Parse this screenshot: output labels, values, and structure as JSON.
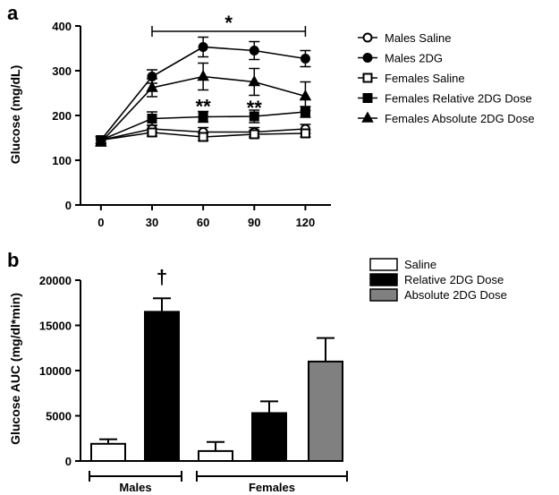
{
  "chart_data": [
    {
      "type": "line",
      "panel_label": "a",
      "xlabel": "",
      "ylabel": "Glucose (mg/dL)",
      "x": [
        0,
        30,
        60,
        90,
        120
      ],
      "xticks": [
        "0",
        "30",
        "60",
        "90",
        "120"
      ],
      "yticks": [
        "0",
        "100",
        "200",
        "300",
        "400"
      ],
      "xlim": [
        -12,
        135
      ],
      "ylim": [
        0,
        400
      ],
      "grid": false,
      "legend_position": "right",
      "series": [
        {
          "name": "Males Saline",
          "marker": "circle-open",
          "values": [
            145,
            170,
            163,
            163,
            170
          ],
          "errors": [
            8,
            8,
            10,
            10,
            10
          ]
        },
        {
          "name": "Males 2DG",
          "marker": "circle-filled",
          "values": [
            145,
            287,
            353,
            345,
            327
          ],
          "errors": [
            8,
            15,
            22,
            20,
            18
          ]
        },
        {
          "name": "Females Saline",
          "marker": "square-open",
          "values": [
            145,
            162,
            152,
            158,
            160
          ],
          "errors": [
            8,
            8,
            8,
            8,
            8
          ]
        },
        {
          "name": "Females Relative 2DG Dose",
          "marker": "square-filled",
          "values": [
            145,
            193,
            197,
            198,
            208
          ],
          "errors": [
            8,
            15,
            12,
            14,
            12
          ]
        },
        {
          "name": "Females Absolute 2DG Dose",
          "marker": "triangle-filled",
          "values": [
            140,
            262,
            287,
            275,
            243
          ],
          "errors": [
            8,
            20,
            30,
            30,
            32
          ]
        }
      ],
      "annotations": [
        {
          "text": "*",
          "note": "bracket spanning x 30 to 120",
          "x_start": 30,
          "x_end": 120,
          "y": 388
        },
        {
          "text": "**",
          "x": 60,
          "y": 225
        },
        {
          "text": "**",
          "x": 90,
          "y": 222
        }
      ]
    },
    {
      "type": "bar",
      "panel_label": "b",
      "xlabel": "",
      "ylabel": "Glucose AUC (mg/dl*min)",
      "yticks": [
        "0",
        "5000",
        "10000",
        "15000",
        "20000"
      ],
      "ylim": [
        0,
        20000
      ],
      "grid": false,
      "legend_position": "top-right",
      "groups": [
        "Males",
        "Females"
      ],
      "series_legend": [
        {
          "name": "Saline",
          "color": "#ffffff"
        },
        {
          "name": "Relative 2DG Dose",
          "color": "#000000"
        },
        {
          "name": "Absolute 2DG Dose",
          "color": "#808080"
        }
      ],
      "bars": [
        {
          "group": "Males",
          "series": "Saline",
          "value": 1900,
          "error": 500
        },
        {
          "group": "Males",
          "series": "Relative 2DG Dose",
          "value": 16500,
          "error": 1500
        },
        {
          "group": "Females",
          "series": "Saline",
          "value": 1100,
          "error": 1000
        },
        {
          "group": "Females",
          "series": "Relative 2DG Dose",
          "value": 5300,
          "error": 1300
        },
        {
          "group": "Females",
          "series": "Absolute 2DG Dose",
          "value": 11000,
          "error": 2600
        }
      ],
      "annotations": [
        {
          "text": "†",
          "group": "Males",
          "series": "Relative 2DG Dose"
        }
      ]
    }
  ]
}
